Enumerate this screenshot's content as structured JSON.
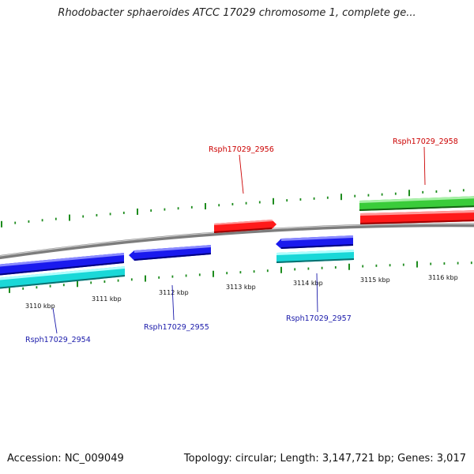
{
  "title": "Rhodobacter sphaeroides ATCC 17029 chromosome 1, complete ge...",
  "accession_text": "Accession: NC_009049",
  "summary_text": "Topology: circular; Length: 3,147,721 bp; Genes: 3,017",
  "colors": {
    "backbone": "#8a8a8a",
    "tick": "#1e8c1e",
    "forward_label": "#cc0000",
    "reverse_label": "#1a1aaa",
    "forward_gene": "#ff1a1a",
    "forward_cds": "#3acc3a",
    "reverse_gene": "#1a1aee",
    "reverse_cds": "#1ad8d8"
  },
  "scale_labels": [
    "3110 kbp",
    "3111 kbp",
    "3112 kbp",
    "3113 kbp",
    "3114 kbp",
    "3115 kbp",
    "3116 kbp"
  ],
  "gene_labels": [
    {
      "name": "Rsph17029_2954",
      "strand": "reverse"
    },
    {
      "name": "Rsph17029_2955",
      "strand": "reverse"
    },
    {
      "name": "Rsph17029_2956",
      "strand": "forward"
    },
    {
      "name": "Rsph17029_2957",
      "strand": "reverse"
    },
    {
      "name": "Rsph17029_2958",
      "strand": "forward"
    }
  ]
}
